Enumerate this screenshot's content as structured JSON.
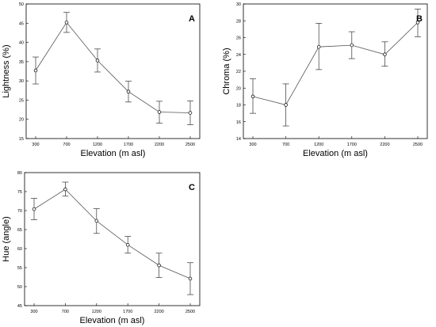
{
  "chart_data": [
    {
      "type": "line",
      "panel_label": "A",
      "xlabel": "Elevation (m asl)",
      "ylabel": "Lightness (%)",
      "categories": [
        "300",
        "700",
        "1200",
        "1700",
        "2200",
        "2500"
      ],
      "series": [
        {
          "values": [
            32.7,
            45.2,
            35.3,
            27.2,
            21.9,
            21.7
          ],
          "err_low": [
            29.2,
            42.6,
            32.3,
            24.5,
            19.0,
            18.6
          ],
          "err_high": [
            36.2,
            47.8,
            38.3,
            29.9,
            24.7,
            24.8
          ]
        }
      ],
      "ylim": [
        15,
        50
      ],
      "yticks": [
        "15",
        "20",
        "25",
        "30",
        "35",
        "40",
        "45",
        "50"
      ],
      "grid": false
    },
    {
      "type": "line",
      "panel_label": "B",
      "xlabel": "Elevation (m asl)",
      "ylabel": "Chroma (%)",
      "categories": [
        "300",
        "700",
        "1200",
        "1700",
        "2200",
        "2500"
      ],
      "series": [
        {
          "values": [
            19.0,
            18.0,
            24.9,
            25.1,
            24.0,
            27.8
          ],
          "err_low": [
            17.0,
            15.5,
            22.2,
            23.5,
            22.6,
            26.1
          ],
          "err_high": [
            21.1,
            20.5,
            27.7,
            26.7,
            25.5,
            29.4
          ]
        }
      ],
      "ylim": [
        14,
        30
      ],
      "yticks": [
        "14",
        "16",
        "18",
        "20",
        "22",
        "24",
        "26",
        "28",
        "30"
      ],
      "grid": false
    },
    {
      "type": "line",
      "panel_label": "C",
      "xlabel": "Elevation (m asl)",
      "ylabel": "Hue (angle)",
      "categories": [
        "300",
        "700",
        "1200",
        "1700",
        "2200",
        "2500"
      ],
      "series": [
        {
          "values": [
            70.4,
            75.6,
            67.3,
            61.0,
            55.6,
            52.1
          ],
          "err_low": [
            67.6,
            73.8,
            64.0,
            58.8,
            52.4,
            47.9
          ],
          "err_high": [
            73.2,
            77.5,
            70.5,
            63.2,
            58.8,
            56.3
          ]
        }
      ],
      "ylim": [
        45,
        80
      ],
      "yticks": [
        "45",
        "50",
        "55",
        "60",
        "65",
        "70",
        "75",
        "80"
      ],
      "grid": false
    }
  ]
}
